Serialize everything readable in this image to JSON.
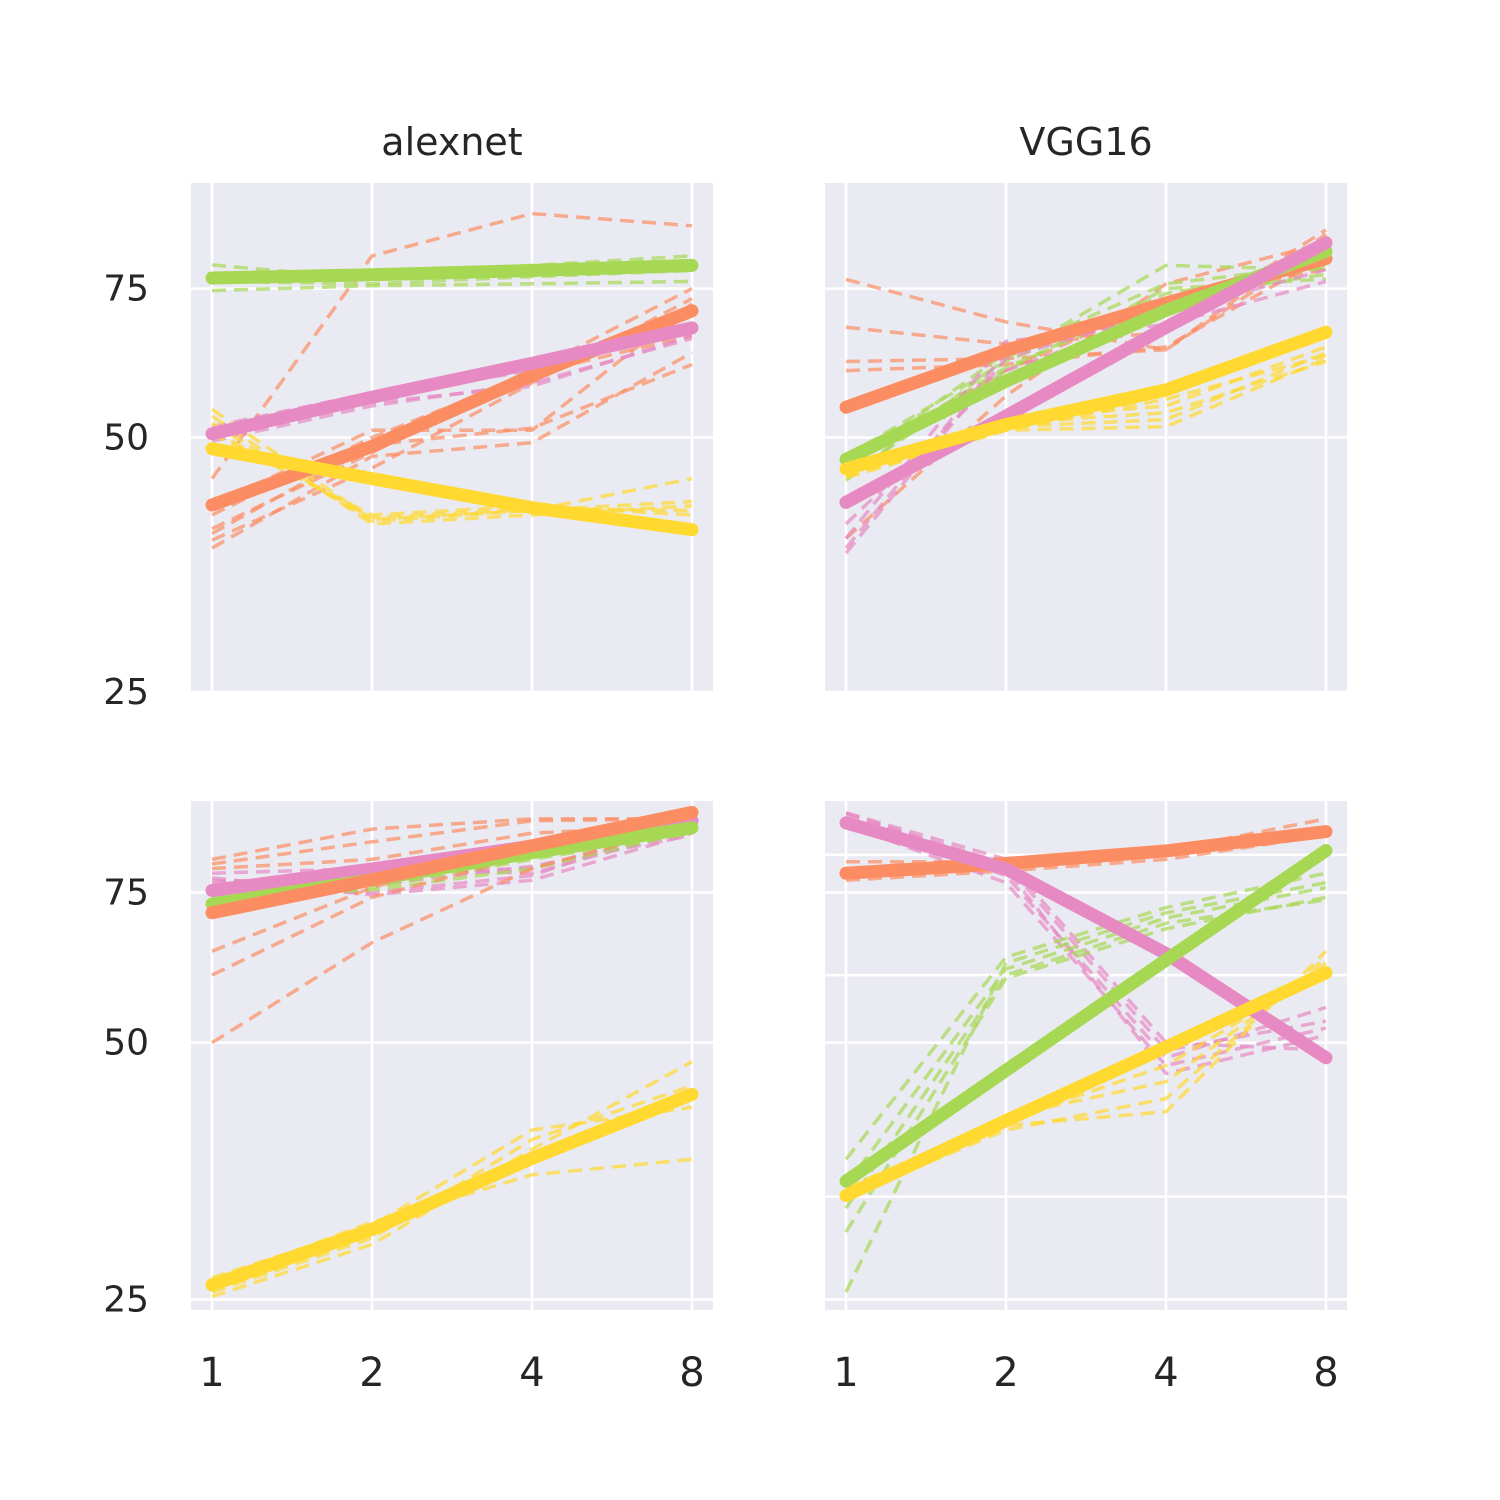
{
  "chart_data": [
    {
      "type": "line",
      "title": "alexnet",
      "x": [
        1,
        2,
        4,
        8
      ],
      "xticklabels": [
        "1",
        "2",
        "4",
        "8"
      ],
      "yscale": "log",
      "ylim": [
        25,
        100
      ],
      "yticks": [
        25,
        50,
        75
      ],
      "xlabels_shown": false,
      "ylabels_shown": true,
      "grid": true,
      "series": [
        {
          "color": "#a6d854",
          "values": [
            77.2,
            77.9,
            78.8,
            79.9
          ],
          "dashed": [
            [
              76.3,
              78.0,
              79.9,
              82.0
            ],
            [
              80.0,
              77.0,
              78.4,
              79.9
            ],
            [
              78.0,
              77.5,
              79.0,
              81.0
            ],
            [
              74.6,
              75.6,
              76.0,
              76.5
            ],
            [
              76.5,
              76.0,
              77.5,
              78.8
            ]
          ]
        },
        {
          "color": "#fc8d62",
          "values": [
            41.6,
            48.8,
            59.2,
            70.6
          ],
          "dashed": [
            [
              44.7,
              82.0,
              92.0,
              89.0
            ],
            [
              37.0,
              47.5,
              49.3,
              63.0
            ],
            [
              38.5,
              49.0,
              51.3,
              61.0
            ],
            [
              41.6,
              51.0,
              51.0,
              72.0
            ],
            [
              39.0,
              48.0,
              60.0,
              75.0
            ],
            [
              40.5,
              50.0,
              59.5,
              66.0
            ],
            [
              37.8,
              46.0,
              58.0,
              73.0
            ]
          ]
        },
        {
          "color": "#e78ac3",
          "values": [
            50.5,
            55.8,
            61.2,
            67.4
          ],
          "dashed": [
            [
              51.0,
              56.0,
              60.0,
              71.0
            ],
            [
              49.5,
              54.5,
              58.0,
              65.5
            ],
            [
              50.0,
              55.0,
              57.5,
              66.0
            ],
            [
              51.5,
              56.5,
              61.0,
              68.0
            ]
          ]
        },
        {
          "color": "#ffd92f",
          "values": [
            48.5,
            44.7,
            41.3,
            38.9
          ],
          "dashed": [
            [
              54.0,
              40.0,
              41.0,
              42.0
            ],
            [
              53.0,
              39.5,
              40.5,
              41.5
            ],
            [
              52.0,
              39.8,
              41.0,
              44.7
            ],
            [
              51.0,
              40.2,
              41.2,
              41.0
            ],
            [
              50.5,
              40.5,
              41.5,
              40.5
            ]
          ]
        }
      ]
    },
    {
      "type": "line",
      "title": "VGG16",
      "x": [
        1,
        2,
        4,
        8
      ],
      "xticklabels": [
        "1",
        "2",
        "4",
        "8"
      ],
      "yscale": "log",
      "ylim": [
        25,
        100
      ],
      "yticks": [
        25,
        50,
        75
      ],
      "xlabels_shown": false,
      "ylabels_shown": false,
      "grid": true,
      "series": [
        {
          "color": "#fc8d62",
          "values": [
            54.3,
            63.4,
            72.1,
            81.4
          ],
          "dashed": [
            [
              76.9,
              68.5,
              63.5,
              85.0
            ],
            [
              67.5,
              64.5,
              66.5,
              88.0
            ],
            [
              61.5,
              62.0,
              63.5,
              87.0
            ],
            [
              60.0,
              61.0,
              64.0,
              82.0
            ],
            [
              47.0,
              60.0,
              73.0,
              79.0
            ],
            [
              38.0,
              56.0,
              76.0,
              85.0
            ]
          ]
        },
        {
          "color": "#a6d854",
          "values": [
            47.1,
            58.3,
            70.7,
            83.0
          ],
          "dashed": [
            [
              44.5,
              62.0,
              79.9,
              79.0
            ],
            [
              46.0,
              63.0,
              76.0,
              80.0
            ],
            [
              45.0,
              60.0,
              75.0,
              77.0
            ],
            [
              47.5,
              61.5,
              74.0,
              79.5
            ],
            [
              46.5,
              60.5,
              73.0,
              78.0
            ]
          ]
        },
        {
          "color": "#e78ac3",
          "values": [
            41.9,
            53.0,
            67.5,
            85.0
          ],
          "dashed": [
            [
              37.0,
              63.0,
              70.0,
              79.0
            ],
            [
              38.0,
              65.0,
              68.0,
              76.5
            ],
            [
              39.5,
              60.0,
              70.0,
              81.0
            ],
            [
              36.5,
              62.0,
              71.0,
              84.0
            ]
          ]
        },
        {
          "color": "#ffd92f",
          "values": [
            45.9,
            51.8,
            56.9,
            66.6
          ],
          "dashed": [
            [
              45.0,
              51.0,
              51.5,
              62.0
            ],
            [
              45.5,
              51.5,
              52.5,
              63.0
            ],
            [
              46.0,
              52.0,
              53.5,
              61.5
            ],
            [
              45.5,
              52.5,
              54.5,
              64.0
            ],
            [
              44.8,
              51.0,
              55.5,
              62.5
            ]
          ]
        }
      ]
    },
    {
      "type": "line",
      "title": "",
      "x": [
        1,
        2,
        4,
        8
      ],
      "xticklabels": [
        "1",
        "2",
        "4",
        "8"
      ],
      "yscale": "log",
      "ylim": [
        24.3,
        96
      ],
      "yticks": [
        25,
        50,
        75
      ],
      "xlabels_shown": true,
      "ylabels_shown": true,
      "grid": true,
      "series": [
        {
          "color": "#e78ac3",
          "values": [
            75.4,
            79.9,
            85.0,
            91.0
          ],
          "dashed": [
            [
              79.0,
              80.0,
              79.0,
              89.0
            ],
            [
              77.0,
              79.0,
              80.0,
              90.0
            ],
            [
              78.0,
              74.5,
              77.5,
              88.0
            ],
            [
              76.0,
              75.0,
              78.5,
              91.0
            ],
            [
              77.5,
              76.5,
              80.5,
              87.5
            ]
          ]
        },
        {
          "color": "#a6d854",
          "values": [
            72.7,
            77.6,
            83.5,
            89.3
          ],
          "dashed": [
            [
              73.0,
              76.0,
              82.0,
              88.0
            ],
            [
              72.0,
              78.0,
              84.0,
              89.5
            ],
            [
              74.0,
              75.5,
              80.0,
              88.5
            ]
          ]
        },
        {
          "color": "#fc8d62",
          "values": [
            71.0,
            77.6,
            85.1,
            93.1
          ],
          "dashed": [
            [
              50.0,
              65.5,
              80.0,
              90.0
            ],
            [
              60.0,
              74.0,
              83.0,
              91.0
            ],
            [
              64.0,
              76.0,
              86.0,
              90.5
            ],
            [
              82.0,
              89.0,
              91.5,
              91.5
            ],
            [
              81.0,
              86.0,
              91.0,
              91.5
            ],
            [
              80.0,
              82.0,
              88.0,
              90.0
            ]
          ]
        },
        {
          "color": "#ffd92f",
          "values": [
            26.0,
            30.2,
            36.6,
            43.5
          ],
          "dashed": [
            [
              25.2,
              29.0,
              37.5,
              47.5
            ],
            [
              25.5,
              29.5,
              38.5,
              44.5
            ],
            [
              26.5,
              30.5,
              39.5,
              42.0
            ],
            [
              26.2,
              30.8,
              35.0,
              36.5
            ],
            [
              25.8,
              29.8,
              37.0,
              43.0
            ]
          ]
        }
      ]
    },
    {
      "type": "line",
      "title": "",
      "x": [
        1,
        2,
        4,
        8
      ],
      "xticklabels": [
        "1",
        "2",
        "4",
        "8"
      ],
      "yscale": "log",
      "ylim": [
        24.3,
        96
      ],
      "yticks": [
        25,
        50,
        75
      ],
      "xlabels_shown": true,
      "ylabels_shown": false,
      "grid": true,
      "extra_gridlines": [
        33,
        60,
        83
      ],
      "series": [
        {
          "color": "#fc8d62",
          "values": [
            79.0,
            81.1,
            83.9,
            88.4
          ],
          "dashed": [
            [
              81.5,
              81.5,
              84.0,
              91.5
            ],
            [
              80.0,
              80.5,
              83.0,
              89.0
            ],
            [
              77.5,
              79.5,
              82.0,
              87.5
            ],
            [
              78.5,
              80.0,
              84.5,
              88.0
            ]
          ]
        },
        {
          "color": "#e78ac3",
          "values": [
            90.5,
            79.9,
            63.6,
            48.0
          ],
          "dashed": [
            [
              93.0,
              80.0,
              46.0,
              51.0
            ],
            [
              91.5,
              78.5,
              48.0,
              55.0
            ],
            [
              92.5,
              81.0,
              49.0,
              53.0
            ],
            [
              90.0,
              77.0,
              47.0,
              52.0
            ],
            [
              93.0,
              82.0,
              50.0,
              49.0
            ]
          ]
        },
        {
          "color": "#a6d854",
          "values": [
            34.4,
            46.4,
            62.5,
            84.0
          ],
          "dashed": [
            [
              25.5,
              62.0,
              71.0,
              77.0
            ],
            [
              30.0,
              59.5,
              68.0,
              74.0
            ],
            [
              34.0,
              61.0,
              70.0,
              76.0
            ],
            [
              36.5,
              63.0,
              72.0,
              79.0
            ],
            [
              32.0,
              60.0,
              69.0,
              73.5
            ]
          ]
        },
        {
          "color": "#ffd92f",
          "values": [
            33.1,
            40.5,
            49.4,
            60.4
          ],
          "dashed": [
            [
              33.5,
              40.0,
              41.5,
              64.0
            ],
            [
              33.0,
              39.5,
              43.0,
              63.0
            ],
            [
              33.2,
              41.0,
              45.0,
              62.0
            ],
            [
              33.8,
              40.5,
              47.0,
              61.0
            ]
          ]
        }
      ]
    }
  ]
}
